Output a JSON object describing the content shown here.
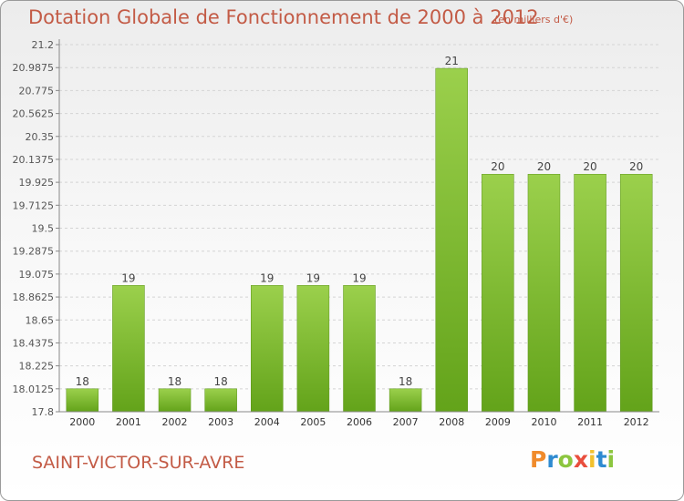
{
  "header": {
    "title": "Dotation Globale de Fonctionnement de 2000 à 2012",
    "subtitle": "(en milliers d'€)"
  },
  "footer": {
    "commune": "SAINT-VICTOR-SUR-AVRE",
    "logo_text": "Proxiti"
  },
  "colors": {
    "title": "#c35b46",
    "bar_light": "#9bd04c",
    "bar_dark": "#63a31a",
    "logo": [
      "#f08b2c",
      "#2e8bd1",
      "#8cc63f",
      "#e94e3d",
      "#f2c12e",
      "#2e8bd1",
      "#8cc63f"
    ]
  },
  "chart_data": {
    "type": "bar",
    "title": "Dotation Globale de Fonctionnement de 2000 à 2012",
    "subtitle": "(en milliers d'€)",
    "xlabel": "",
    "ylabel": "",
    "categories": [
      "2000",
      "2001",
      "2002",
      "2003",
      "2004",
      "2005",
      "2006",
      "2007",
      "2008",
      "2009",
      "2010",
      "2011",
      "2012"
    ],
    "values": [
      18.0125,
      18.97,
      18.0125,
      18.0125,
      18.97,
      18.97,
      18.97,
      18.0125,
      20.98,
      20.0,
      20.0,
      20.0,
      20.0
    ],
    "data_labels": [
      "18",
      "19",
      "18",
      "18",
      "19",
      "19",
      "19",
      "18",
      "21",
      "20",
      "20",
      "20",
      "20"
    ],
    "yticks": [
      "17.8",
      "18.0125",
      "18.225",
      "18.4375",
      "18.65",
      "18.8625",
      "19.075",
      "19.2875",
      "19.5",
      "19.7125",
      "19.925",
      "20.1375",
      "20.35",
      "20.5625",
      "20.775",
      "20.9875",
      "21.2"
    ],
    "ylim": [
      17.8,
      21.2
    ],
    "grid": true
  }
}
